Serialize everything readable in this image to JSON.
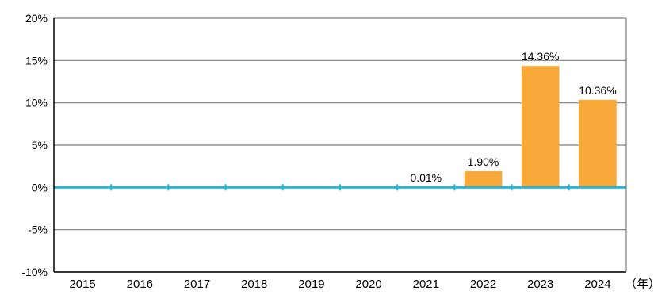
{
  "chart_data": {
    "type": "bar",
    "categories": [
      "2015",
      "2016",
      "2017",
      "2018",
      "2019",
      "2020",
      "2021",
      "2022",
      "2023",
      "2024"
    ],
    "values": [
      null,
      null,
      null,
      null,
      null,
      null,
      0.01,
      1.9,
      14.36,
      10.36
    ],
    "data_labels": [
      "",
      "",
      "",
      "",
      "",
      "",
      "0.01%",
      "1.90%",
      "14.36%",
      "10.36%"
    ],
    "yticks": [
      20,
      15,
      10,
      5,
      0,
      -5,
      -10
    ],
    "ytick_labels": [
      "20%",
      "15%",
      "10%",
      "5%",
      "0%",
      "-5%",
      "-10%"
    ],
    "ylim": [
      -10,
      20
    ],
    "x_unit": "（年）",
    "grid": true,
    "colors": {
      "bar": "#F9A93A",
      "zero_line": "#29B6D9",
      "grid": "#7f7f7f",
      "axis": "#000000"
    }
  }
}
